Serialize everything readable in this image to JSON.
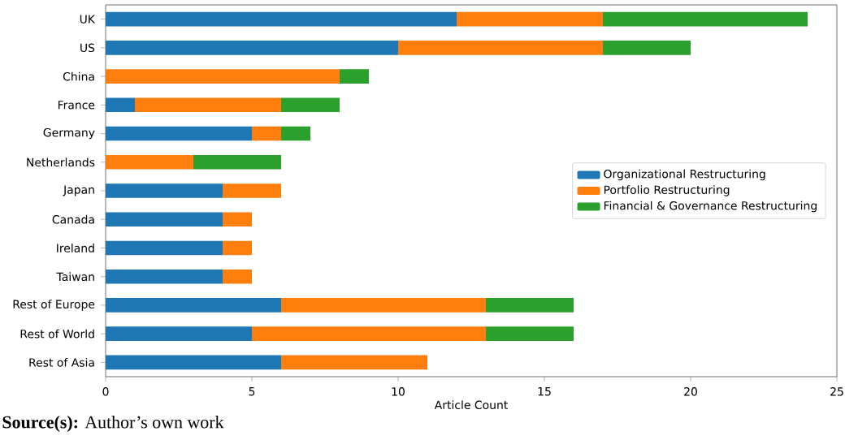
{
  "chart_data": {
    "type": "bar",
    "orientation": "horizontal",
    "stacked": true,
    "xlabel": "Article Count",
    "categories": [
      "UK",
      "US",
      "China",
      "France",
      "Germany",
      "Netherlands",
      "Japan",
      "Canada",
      "Ireland",
      "Taiwan",
      "Rest of Europe",
      "Rest of World",
      "Rest of Asia"
    ],
    "series": [
      {
        "name": "Organizational Restructuring",
        "color": "#1f77b4",
        "values": [
          12,
          10,
          0,
          1,
          5,
          0,
          4,
          4,
          4,
          4,
          6,
          5,
          6
        ]
      },
      {
        "name": "Portfolio Restructuring",
        "color": "#ff7f0e",
        "values": [
          5,
          7,
          8,
          5,
          1,
          3,
          2,
          1,
          1,
          1,
          7,
          8,
          5
        ]
      },
      {
        "name": "Financial & Governance Restructuring",
        "color": "#2ca02c",
        "values": [
          7,
          3,
          1,
          2,
          1,
          3,
          0,
          0,
          0,
          0,
          3,
          3,
          0
        ]
      }
    ],
    "xlim": [
      0,
      25
    ],
    "xticks": [
      0,
      5,
      10,
      15,
      20,
      25
    ],
    "legend": "right",
    "annotations": [
      "**Source(s):** Author’s own work"
    ]
  }
}
